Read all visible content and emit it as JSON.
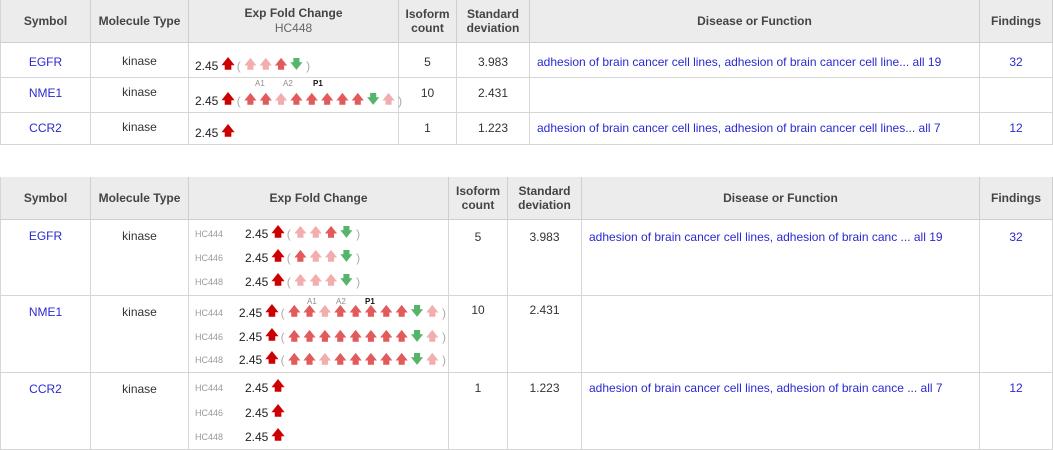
{
  "headers": {
    "symbol": "Symbol",
    "molecule_type": "Molecule Type",
    "exp_fold_change": "Exp Fold Change",
    "isoform_count": "Isoform count",
    "standard_deviation": "Standard deviation",
    "disease_or_function": "Disease or Function",
    "findings": "Findings"
  },
  "table1": {
    "subheader": "HC448",
    "rows": [
      {
        "symbol": "EGFR",
        "molecule_type": "kinase",
        "fold": "2.45",
        "isoform": "5",
        "stdev": "3.983",
        "disease": "adhesion of brain cancer cell lines, adhesion of brain cancer cell line... all 19",
        "findings": "32"
      },
      {
        "symbol": "NME1",
        "molecule_type": "kinase",
        "fold": "2.45",
        "isoform": "10",
        "stdev": "2.431",
        "disease": "",
        "findings": ""
      },
      {
        "symbol": "CCR2",
        "molecule_type": "kinase",
        "fold": "2.45",
        "isoform": "1",
        "stdev": "1.223",
        "disease": "adhesion of brain cancer cell lines, adhesion of brain cancer cell lines... all 7",
        "findings": "12"
      }
    ]
  },
  "table2": {
    "rows": [
      {
        "symbol": "EGFR",
        "molecule_type": "kinase",
        "isoform": "5",
        "stdev": "3.983",
        "disease": "adhesion of brain cancer cell lines, adhesion of brain canc ... all 19",
        "findings": "32",
        "samples": [
          {
            "label": "HC444",
            "fold": "2.45"
          },
          {
            "label": "HC446",
            "fold": "2.45"
          },
          {
            "label": "HC448",
            "fold": "2.45"
          }
        ]
      },
      {
        "symbol": "NME1",
        "molecule_type": "kinase",
        "isoform": "10",
        "stdev": "2.431",
        "disease": "",
        "findings": "",
        "samples": [
          {
            "label": "HC444",
            "fold": "2.45"
          },
          {
            "label": "HC446",
            "fold": "2.45"
          },
          {
            "label": "HC448",
            "fold": "2.45"
          }
        ]
      },
      {
        "symbol": "CCR2",
        "molecule_type": "kinase",
        "isoform": "1",
        "stdev": "1.223",
        "disease": "adhesion of brain cancer cell lines, adhesion of brain cance ... all 7",
        "findings": "12",
        "samples": [
          {
            "label": "HC444",
            "fold": "2.45"
          },
          {
            "label": "HC446",
            "fold": "2.45"
          },
          {
            "label": "HC448",
            "fold": "2.45"
          }
        ]
      }
    ]
  },
  "isoform_labels": {
    "a1": "A1",
    "a2": "A2",
    "p1": "P1"
  },
  "glyphs": {
    "up": "🡅",
    "down": "🡇",
    "open": "(",
    "close": ")"
  },
  "icons": {
    "up": "arrow-up-icon",
    "down": "arrow-down-icon"
  },
  "colors": {
    "link": "#2a2ad0",
    "big_up": "#cc0000",
    "up_strong": "#e25b5b",
    "up_light": "#f2aeae",
    "down": "#55b56a",
    "header_bg": "#ececec"
  }
}
